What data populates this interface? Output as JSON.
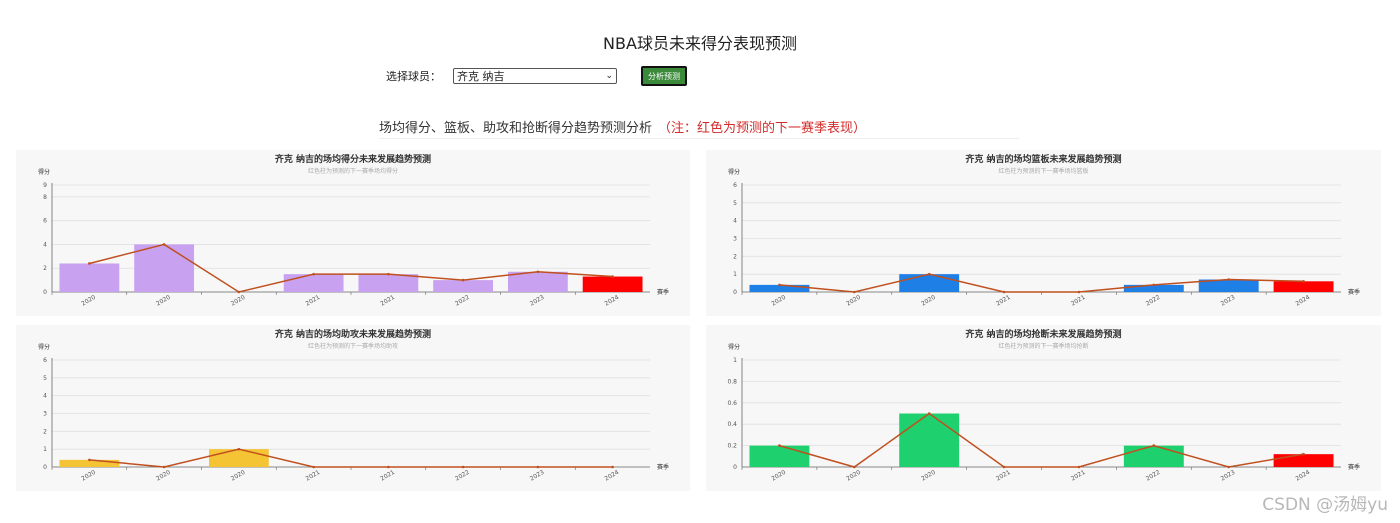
{
  "page": {
    "title": "NBA球员未来得分表现预测",
    "select_label": "选择球员：",
    "selected_player": "齐克 纳吉",
    "button_label": "分析预测",
    "section_title": "场均得分、篮板、助攻和抢断得分趋势预测分析",
    "section_note": "（注：红色为预测的下一赛季表现）",
    "watermark": "CSDN @汤姆yu"
  },
  "colors": {
    "line": "#c0501f",
    "predicted": "#ff0000",
    "points": "#c8a2f0",
    "rebounds": "#1e7fe6",
    "assists": "#f5c435",
    "steals": "#1fd06e"
  },
  "chart_data": [
    {
      "type": "bar",
      "title": "齐克 纳吉的场均得分未来发展趋势预测",
      "subtitle": "红色柱为预测的下一赛季场均得分",
      "ylabel": "得分",
      "xlabel": "赛季",
      "categories": [
        "2020",
        "2020",
        "2020",
        "2021",
        "2021",
        "2022",
        "2023",
        "2024"
      ],
      "values": [
        2.4,
        4,
        0,
        1.5,
        1.5,
        1,
        1.7,
        1.3
      ],
      "ylim": [
        0,
        9
      ],
      "yticks": [
        0,
        2,
        4,
        6,
        8,
        9
      ],
      "bar_color": "#c8a2f0",
      "predicted_index": 7,
      "line": true
    },
    {
      "type": "bar",
      "title": "齐克 纳吉的场均篮板未来发展趋势预测",
      "subtitle": "红色柱为预测的下一赛季场均篮板",
      "ylabel": "得分",
      "xlabel": "赛季",
      "categories": [
        "2020",
        "2020",
        "2020",
        "2021",
        "2021",
        "2022",
        "2023",
        "2024"
      ],
      "values": [
        0.4,
        0,
        1,
        0,
        0,
        0.4,
        0.7,
        0.6
      ],
      "ylim": [
        0,
        6
      ],
      "yticks": [
        0,
        1,
        2,
        3,
        4,
        5,
        6
      ],
      "bar_color": "#1e7fe6",
      "predicted_index": 7,
      "line": true
    },
    {
      "type": "bar",
      "title": "齐克 纳吉的场均助攻未来发展趋势预测",
      "subtitle": "红色柱为预测的下一赛季场均助攻",
      "ylabel": "得分",
      "xlabel": "赛季",
      "categories": [
        "2020",
        "2020",
        "2020",
        "2021",
        "2021",
        "2022",
        "2023",
        "2024"
      ],
      "values": [
        0.4,
        0,
        1,
        0,
        0,
        0,
        0,
        0
      ],
      "ylim": [
        0,
        6
      ],
      "yticks": [
        0,
        1,
        2,
        3,
        4,
        5,
        6
      ],
      "bar_color": "#f5c435",
      "predicted_index": 7,
      "line": true
    },
    {
      "type": "bar",
      "title": "齐克 纳吉的场均抢断未来发展趋势预测",
      "subtitle": "红色柱为预测的下一赛季场均抢断",
      "ylabel": "得分",
      "xlabel": "赛季",
      "categories": [
        "2020",
        "2020",
        "2020",
        "2021",
        "2021",
        "2022",
        "2023",
        "2024"
      ],
      "values": [
        0.2,
        0,
        0.5,
        0,
        0,
        0.2,
        0,
        0.12
      ],
      "ylim": [
        0,
        1
      ],
      "yticks": [
        0,
        0.2,
        0.4,
        0.6,
        0.8,
        1
      ],
      "bar_color": "#1fd06e",
      "predicted_index": 7,
      "line": true
    }
  ]
}
